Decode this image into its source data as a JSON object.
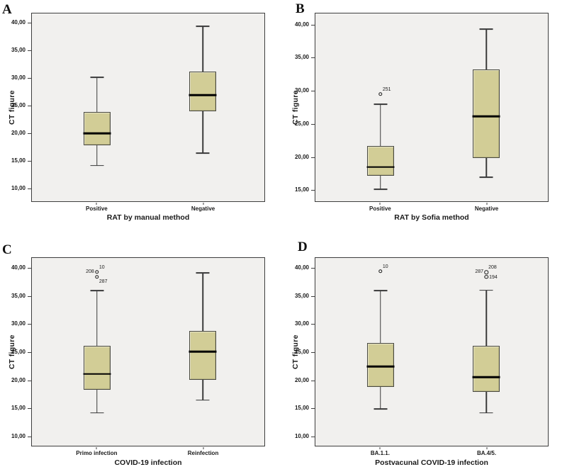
{
  "style": {
    "plot_bg": "#f1f0ee",
    "plot_border": "#3e3e3e",
    "box_fill": "#d2cd96",
    "box_border": "#4a4a41",
    "median_color": "#000000",
    "whisker_color": "#3a3a3a",
    "text_color": "#1a1a1a",
    "figure_bg": "#ffffff"
  },
  "chart_data": [
    {
      "type": "box",
      "panel": "A",
      "ylabel": "CT figure",
      "xlabel": "RAT by manual method",
      "categories": [
        "Positive",
        "Negative"
      ],
      "centers": [
        28,
        73.5
      ],
      "yticks": [
        "10,00",
        "15,00",
        "20,00",
        "25,00",
        "30,00",
        "35,00",
        "40,00"
      ],
      "ytick_values": [
        10,
        15,
        20,
        25,
        30,
        35,
        40
      ],
      "ylim": [
        7.6,
        41.8
      ],
      "grid": false,
      "legend": false,
      "series": [
        {
          "category": "Positive",
          "min": 14.1,
          "q1": 17.8,
          "median": 20.0,
          "q3": 23.9,
          "max": 30.2,
          "outliers": []
        },
        {
          "category": "Negative",
          "min": 16.4,
          "q1": 24.0,
          "median": 26.9,
          "q3": 31.2,
          "max": 39.5,
          "outliers": []
        }
      ]
    },
    {
      "type": "box",
      "panel": "B",
      "ylabel": "CT figure",
      "xlabel": "RAT by Sofia method",
      "categories": [
        "Positive",
        "Negative"
      ],
      "centers": [
        28,
        73.5
      ],
      "yticks": [
        "15,00",
        "20,00",
        "25,00",
        "30,00",
        "35,00",
        "40,00"
      ],
      "ytick_values": [
        15,
        20,
        25,
        30,
        35,
        40
      ],
      "ylim": [
        13.2,
        41.8
      ],
      "grid": false,
      "legend": false,
      "series": [
        {
          "category": "Positive",
          "min": 15.0,
          "q1": 17.1,
          "median": 18.4,
          "q3": 21.6,
          "max": 28.0,
          "outliers": [
            {
              "value": 29.5,
              "labels": [
                {
                  "text": "251",
                  "pos": "top-right"
                }
              ]
            }
          ]
        },
        {
          "category": "Negative",
          "min": 16.9,
          "q1": 19.8,
          "median": 26.1,
          "q3": 33.3,
          "max": 39.4,
          "outliers": []
        }
      ]
    },
    {
      "type": "box",
      "panel": "C",
      "ylabel": "CT figure",
      "xlabel": "COVID-19 infection",
      "categories": [
        "Primo infection",
        "Reinfection"
      ],
      "centers": [
        28,
        73.5
      ],
      "yticks": [
        "10,00",
        "15,00",
        "20,00",
        "25,00",
        "30,00",
        "35,00",
        "40,00"
      ],
      "ytick_values": [
        10,
        15,
        20,
        25,
        30,
        35,
        40
      ],
      "ylim": [
        8.2,
        41.9
      ],
      "grid": false,
      "legend": false,
      "series": [
        {
          "category": "Primo infection",
          "min": 14.1,
          "q1": 18.3,
          "median": 21.1,
          "q3": 26.1,
          "max": 36.0,
          "outliers": [
            {
              "value": 39.4,
              "labels": [
                {
                  "text": "208",
                  "pos": "left"
                },
                {
                  "text": "10",
                  "pos": "top-right"
                }
              ]
            },
            {
              "value": 38.5,
              "labels": [
                {
                  "text": "287",
                  "pos": "bottom-right"
                }
              ]
            }
          ]
        },
        {
          "category": "Reinfection",
          "min": 16.4,
          "q1": 20.0,
          "median": 25.1,
          "q3": 28.8,
          "max": 39.2,
          "outliers": []
        }
      ]
    },
    {
      "type": "box",
      "panel": "D",
      "ylabel": "CT figure",
      "xlabel": "Postvacunal COVID-19 infection",
      "categories": [
        "BA.1.1.",
        "BA.4/5."
      ],
      "centers": [
        28,
        73.5
      ],
      "yticks": [
        "10,00",
        "15,00",
        "20,00",
        "25,00",
        "30,00",
        "35,00",
        "40,00"
      ],
      "ytick_values": [
        10,
        15,
        20,
        25,
        30,
        35,
        40
      ],
      "ylim": [
        8.2,
        41.9
      ],
      "grid": false,
      "legend": false,
      "series": [
        {
          "category": "BA.1.1.",
          "min": 14.8,
          "q1": 18.7,
          "median": 22.4,
          "q3": 26.7,
          "max": 36.0,
          "outliers": [
            {
              "value": 39.5,
              "labels": [
                {
                  "text": "10",
                  "pos": "top-right"
                }
              ]
            }
          ]
        },
        {
          "category": "BA.4/5.",
          "min": 14.1,
          "q1": 17.9,
          "median": 20.5,
          "q3": 26.1,
          "max": 36.1,
          "outliers": [
            {
              "value": 39.3,
              "labels": [
                {
                  "text": "287",
                  "pos": "left"
                },
                {
                  "text": "208",
                  "pos": "top-right"
                }
              ]
            },
            {
              "value": 38.5,
              "labels": [
                {
                  "text": "194",
                  "pos": "right"
                }
              ]
            }
          ]
        }
      ]
    }
  ]
}
